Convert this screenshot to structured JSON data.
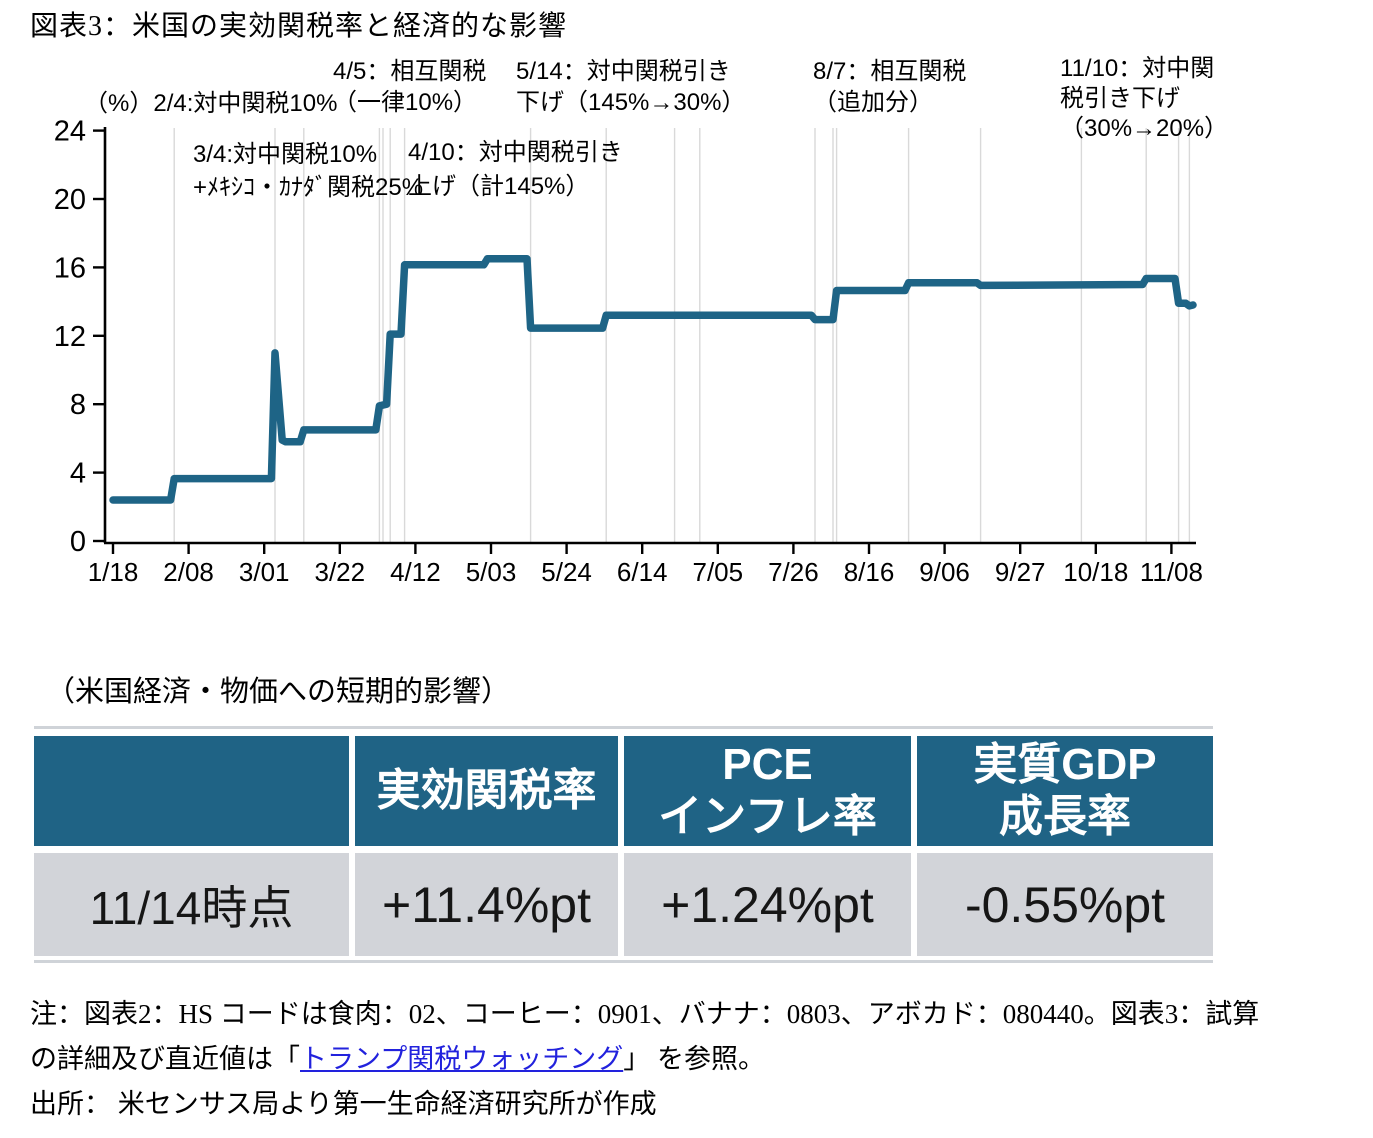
{
  "page": {
    "title": "図表3：米国の実効関税率と経済的な影響"
  },
  "chart_data": {
    "type": "line",
    "title": "米国の実効関税率",
    "unit_label": "（%）",
    "xlabel": "",
    "ylabel": "（%）",
    "ylim": [
      0,
      24
    ],
    "yticks": [
      0,
      4,
      8,
      12,
      16,
      20,
      24
    ],
    "xtick_labels": [
      "1/18",
      "2/08",
      "3/01",
      "3/22",
      "4/12",
      "5/03",
      "5/24",
      "6/14",
      "7/05",
      "7/26",
      "8/16",
      "9/06",
      "9/27",
      "10/18",
      "11/08"
    ],
    "grid": "vertical-event-lines-only",
    "legend": "none",
    "line_color": "#1e6486",
    "gridline_color": "#d9d9d9",
    "event_gridline_dates": [
      "2/04",
      "3/04",
      "3/12",
      "4/02",
      "4/03",
      "4/05",
      "4/09",
      "5/14",
      "6/04",
      "6/23",
      "6/30",
      "8/01",
      "8/06",
      "8/07",
      "8/27",
      "9/16",
      "10/14",
      "11/01",
      "11/10",
      "11/13"
    ],
    "series": [
      {
        "name": "米国の実効関税率（%）",
        "points": [
          [
            "1/18",
            2.4
          ],
          [
            "2/03",
            2.4
          ],
          [
            "2/04",
            3.65
          ],
          [
            "3/03",
            3.65
          ],
          [
            "3/04",
            11.0
          ],
          [
            "3/06",
            5.9
          ],
          [
            "3/07",
            5.8
          ],
          [
            "3/11",
            5.8
          ],
          [
            "3/12",
            6.5
          ],
          [
            "4/01",
            6.5
          ],
          [
            "4/02",
            7.9
          ],
          [
            "4/04",
            8.0
          ],
          [
            "4/05",
            12.1
          ],
          [
            "4/08",
            12.1
          ],
          [
            "4/09",
            16.15
          ],
          [
            "5/01",
            16.15
          ],
          [
            "5/02",
            16.5
          ],
          [
            "5/13",
            16.5
          ],
          [
            "5/14",
            12.45
          ],
          [
            "6/03",
            12.45
          ],
          [
            "6/04",
            13.2
          ],
          [
            "7/31",
            13.2
          ],
          [
            "8/01",
            12.95
          ],
          [
            "8/06",
            12.95
          ],
          [
            "8/07",
            14.65
          ],
          [
            "8/26",
            14.65
          ],
          [
            "8/27",
            15.1
          ],
          [
            "9/15",
            15.1
          ],
          [
            "9/16",
            14.95
          ],
          [
            "10/31",
            15.0
          ],
          [
            "11/01",
            15.35
          ],
          [
            "11/09",
            15.35
          ],
          [
            "11/10",
            13.9
          ],
          [
            "11/12",
            13.9
          ],
          [
            "11/13",
            13.75
          ],
          [
            "11/14",
            13.8
          ]
        ]
      }
    ],
    "annotations": [
      {
        "date": "2/4",
        "text": "2/4:対中関税10%"
      },
      {
        "date": "3/4",
        "text": "3/4:対中関税10%\n+ﾒｷｼｺ・ｶﾅﾀﾞ関税25%"
      },
      {
        "date": "4/5",
        "text": "4/5：相互関税\n（一律10%）"
      },
      {
        "date": "4/10",
        "text": "4/10：対中関税引き\n上げ（計145%）"
      },
      {
        "date": "5/14",
        "text": "5/14：対中関税引き\n下げ（145%→30%）"
      },
      {
        "date": "8/7",
        "text": "8/7：相互関税\n（追加分）"
      },
      {
        "date": "11/10",
        "text": "11/10：対中関\n税引き下げ\n（30%→20%）"
      }
    ]
  },
  "section2": {
    "label": "（米国経済・物価への短期的影響）"
  },
  "table": {
    "headers": [
      "",
      "実効関税率",
      "PCE\nインフレ率",
      "実質GDP\n成長率"
    ],
    "rows": [
      [
        "11/14時点",
        "+11.4%pt",
        "+1.24%pt",
        "-0.55%pt"
      ]
    ]
  },
  "notes": {
    "line1": "注：図表2：HS コードは食肉：02、コーヒー：0901、バナナ：0803、アボカド：080440。図表3：試算",
    "line2_prefix": "の詳細及び直近値は「",
    "line2_link": "トランプ関税ウォッチング",
    "line2_suffix": "」 を参照。",
    "source": "出所： 米センサス局より第一生命経済研究所が作成"
  },
  "colors": {
    "line": "#1e6486",
    "table_header_bg": "#1f6385",
    "table_row_bg": "#d2d4d9",
    "gridline": "#d9d9d9",
    "link": "#2222dd"
  }
}
